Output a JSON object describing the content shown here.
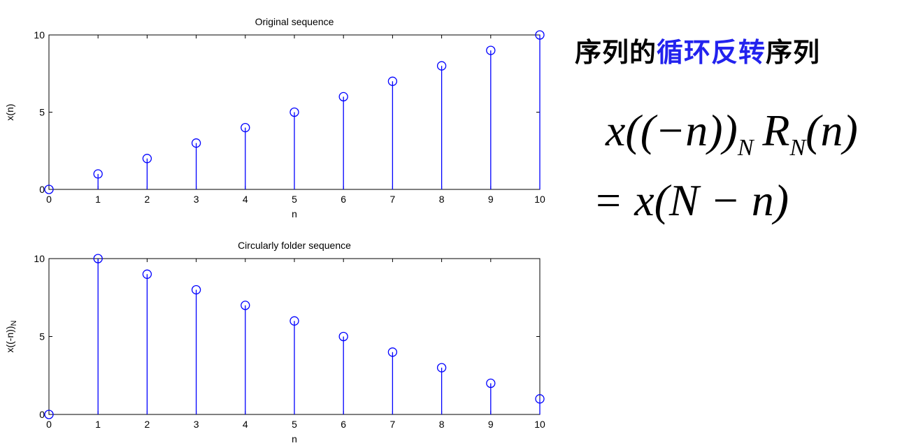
{
  "chart_data": [
    {
      "type": "stem",
      "title": "Original sequence",
      "xlabel": "n",
      "ylabel": "x(n)",
      "x": [
        0,
        1,
        2,
        3,
        4,
        5,
        6,
        7,
        8,
        9,
        10
      ],
      "values": [
        0,
        1,
        2,
        3,
        4,
        5,
        6,
        7,
        8,
        9,
        10
      ],
      "xlim": [
        0,
        10
      ],
      "ylim": [
        0,
        10
      ],
      "xticks": [
        "0",
        "1",
        "2",
        "3",
        "4",
        "5",
        "6",
        "7",
        "8",
        "9",
        "10"
      ],
      "yticks": [
        "0",
        "5",
        "10"
      ],
      "grid": false,
      "color": "#0000ff"
    },
    {
      "type": "stem",
      "title": "Circularly folder sequence",
      "xlabel": "n",
      "ylabel": "x((-n))N",
      "x": [
        0,
        1,
        2,
        3,
        4,
        5,
        6,
        7,
        8,
        9,
        10
      ],
      "values": [
        0,
        10,
        9,
        8,
        7,
        6,
        5,
        4,
        3,
        2,
        1
      ],
      "xlim": [
        0,
        10
      ],
      "ylim": [
        0,
        10
      ],
      "xticks": [
        "0",
        "1",
        "2",
        "3",
        "4",
        "5",
        "6",
        "7",
        "8",
        "9",
        "10"
      ],
      "yticks": [
        "0",
        "5",
        "10"
      ],
      "grid": false,
      "color": "#0000ff"
    }
  ],
  "heading": {
    "prefix": "序列的",
    "highlight": "循环反转",
    "suffix": "序列",
    "highlight_color": "#2222ee"
  },
  "formula": {
    "line1_a": "x((−n))",
    "line1_sub1": "N",
    "line1_b": "R",
    "line1_sub2": "N",
    "line1_c": "(n)",
    "line2": "= x(N − n)"
  }
}
